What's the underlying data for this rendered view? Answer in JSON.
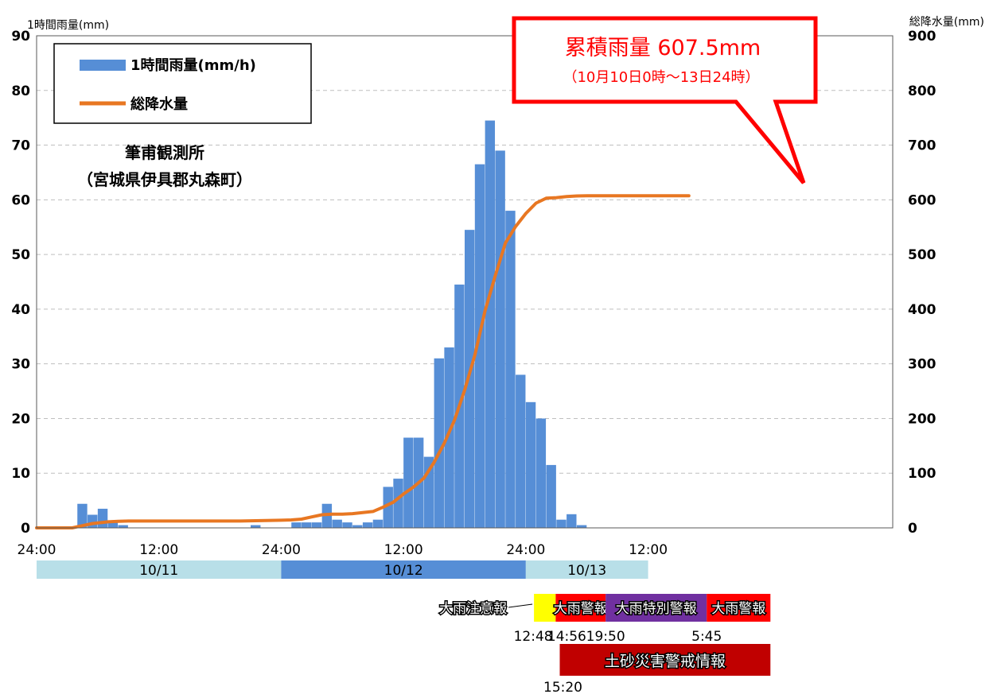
{
  "chart_data": {
    "type": "bar",
    "title": "",
    "station": {
      "name": "筆甫観測所",
      "location": "（宮城県伊具郡丸森町）"
    },
    "ylabel_left": "1時間雨量(mm)",
    "ylabel_right": "総降水量(mm)",
    "ylim_left": [
      0,
      90
    ],
    "ylim_right": [
      0,
      900
    ],
    "yticks_left": [
      "0",
      "10",
      "20",
      "30",
      "40",
      "50",
      "60",
      "70",
      "80",
      "90"
    ],
    "yticks_right": [
      "0",
      "100",
      "200",
      "300",
      "400",
      "500",
      "600",
      "700",
      "800",
      "900"
    ],
    "xlim_hours": [
      0,
      84
    ],
    "xticks": [
      {
        "hour": 0,
        "label": "24:00"
      },
      {
        "hour": 12,
        "label": "12:00"
      },
      {
        "hour": 24,
        "label": "24:00"
      },
      {
        "hour": 36,
        "label": "12:00"
      },
      {
        "hour": 48,
        "label": "24:00"
      },
      {
        "hour": 60,
        "label": "12:00"
      }
    ],
    "grid": true,
    "legend_position": "top-left",
    "legend": {
      "bar_label": "1時間雨量(mm/h)",
      "line_label": "総降水量"
    },
    "series": [
      {
        "name": "1時間雨量(mm/h)",
        "kind": "bar",
        "axis": "left",
        "color": "#568ed6",
        "values": [
          0,
          0,
          0,
          0,
          4.4,
          2.4,
          3.5,
          1.1,
          0.5,
          0,
          0,
          0,
          0,
          0,
          0,
          0,
          0,
          0,
          0,
          0,
          0,
          0.5,
          0,
          0,
          0,
          1,
          1,
          1,
          4.4,
          1.5,
          1,
          0.5,
          1,
          1.5,
          7.5,
          9,
          16.5,
          16.5,
          13,
          31,
          33,
          44.5,
          54.5,
          66.5,
          74.5,
          69,
          58,
          28,
          23,
          20,
          11.5,
          1.5,
          2.5,
          0.5,
          0,
          0,
          0,
          0,
          0,
          0
        ]
      },
      {
        "name": "総降水量",
        "kind": "line",
        "axis": "right",
        "color": "#e87722",
        "points": [
          [
            0,
            0
          ],
          [
            3,
            0
          ],
          [
            3.5,
            0
          ],
          [
            4.5,
            4
          ],
          [
            5.5,
            8
          ],
          [
            6.5,
            10
          ],
          [
            7,
            11
          ],
          [
            8,
            12
          ],
          [
            9,
            12.5
          ],
          [
            12,
            12.5
          ],
          [
            15,
            12.5
          ],
          [
            18,
            12.5
          ],
          [
            20,
            12.5
          ],
          [
            21,
            13
          ],
          [
            24,
            14
          ],
          [
            25,
            14.5
          ],
          [
            26,
            16
          ],
          [
            27,
            20
          ],
          [
            28,
            24
          ],
          [
            29,
            25
          ],
          [
            30,
            25
          ],
          [
            31,
            26
          ],
          [
            32,
            28
          ],
          [
            33,
            30
          ],
          [
            34,
            38
          ],
          [
            35,
            47
          ],
          [
            36,
            62
          ],
          [
            37,
            75
          ],
          [
            38,
            91
          ],
          [
            39,
            120
          ],
          [
            40,
            155
          ],
          [
            41,
            197
          ],
          [
            42,
            252
          ],
          [
            43,
            316
          ],
          [
            44,
            397
          ],
          [
            45,
            461
          ],
          [
            46,
            521
          ],
          [
            47,
            551
          ],
          [
            48,
            575
          ],
          [
            49,
            594
          ],
          [
            50,
            603
          ],
          [
            51,
            604
          ],
          [
            52,
            606
          ],
          [
            53,
            607
          ],
          [
            54,
            607.5
          ],
          [
            60,
            607.5
          ],
          [
            64,
            607.5
          ]
        ]
      }
    ],
    "callout": {
      "title": "累積雨量 607.5mm",
      "subtitle": "（10月10日0時～13日24時）"
    },
    "date_bands": [
      {
        "label": "10/11",
        "start": 0,
        "end": 24,
        "color": "#b8dfe8"
      },
      {
        "label": "10/12",
        "start": 24,
        "end": 48,
        "color": "#568ed6"
      },
      {
        "label": "10/13",
        "start": 48,
        "end": 60,
        "color": "#b8dfe8"
      }
    ],
    "warnings": [
      {
        "label": "大雨注意報",
        "start": 12.8,
        "end": 14.93,
        "color": "#ffff00",
        "label_outside": true
      },
      {
        "label": "大雨警報",
        "start": 14.93,
        "end": 19.83,
        "color": "#ff0000",
        "label_outside": false
      },
      {
        "label": "大雨特別警報",
        "start": 19.83,
        "end": 29.75,
        "color": "#7030a0",
        "label_outside": false
      },
      {
        "label": "大雨警報",
        "start": 29.75,
        "end": 36,
        "color": "#ff0000",
        "label_outside": false
      }
    ],
    "warning_times": [
      "12:48",
      "14:56",
      "19:50",
      "5:45"
    ],
    "sediment_warning": {
      "label": "土砂災害警戒情報",
      "start": 15.33,
      "end": 36,
      "color": "#c00000",
      "time_label": "15:20"
    }
  }
}
